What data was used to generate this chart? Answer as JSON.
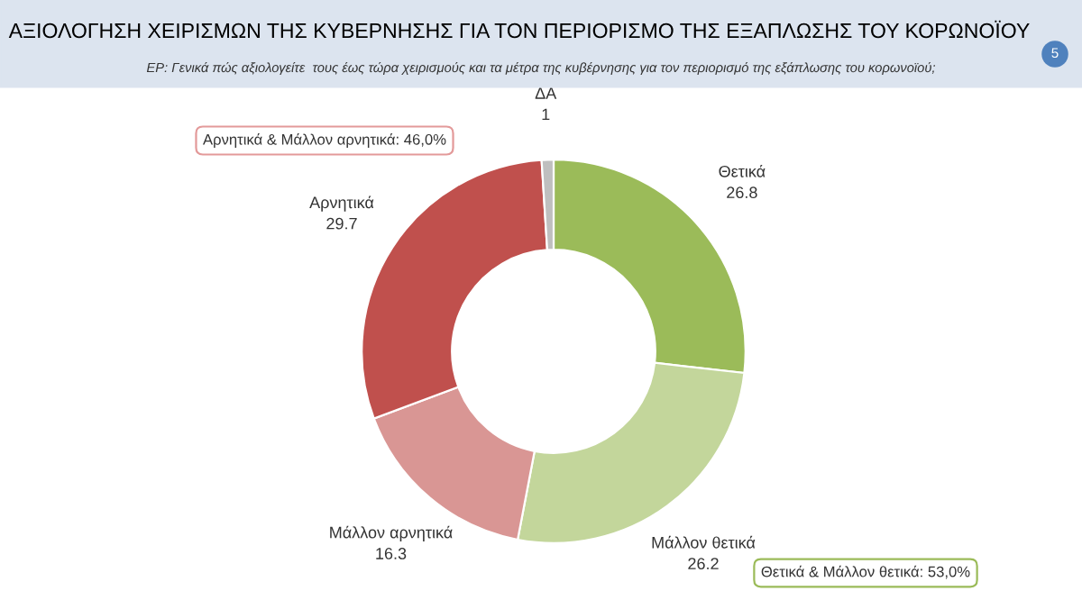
{
  "chart_data": {
    "type": "donut",
    "title": "ΑΞΙΟΛΟΓΗΣΗ ΧΕΙΡΙΣΜΩΝ ΤΗΣ ΚΥΒΕΡΝΗΣΗΣ ΓΙΑ ΤΟΝ ΠΕΡΙΟΡΙΣΜΟ ΤΗΣ ΕΞΑΠΛΩΣΗΣ ΤΟΥ ΚΟΡΩΝΟΪΟΥ",
    "subtitle": "ΕΡ: Γενικά πώς αξιολογείτε  τους έως τώρα χειρισμούς και τα μέτρα της κυβέρνησης για τον περιορισμό της εξάπλωσης του κορωνοϊού;",
    "categories": [
      "Θετικά",
      "Μάλλον θετικά",
      "Μάλλον αρνητικά",
      "Αρνητικά",
      "ΔΑ"
    ],
    "values": [
      26.8,
      26.2,
      16.3,
      29.7,
      1
    ],
    "colors": [
      "#9bbb59",
      "#c3d69b",
      "#d99694",
      "#c0504d",
      "#bfbfbf"
    ],
    "data_labels": true,
    "annotations": [
      "Αρνητικά & Μάλλον αρνητικά: 46,0%",
      "Θετικά & Μάλλον θετικά: 53,0%",
      "5"
    ]
  }
}
